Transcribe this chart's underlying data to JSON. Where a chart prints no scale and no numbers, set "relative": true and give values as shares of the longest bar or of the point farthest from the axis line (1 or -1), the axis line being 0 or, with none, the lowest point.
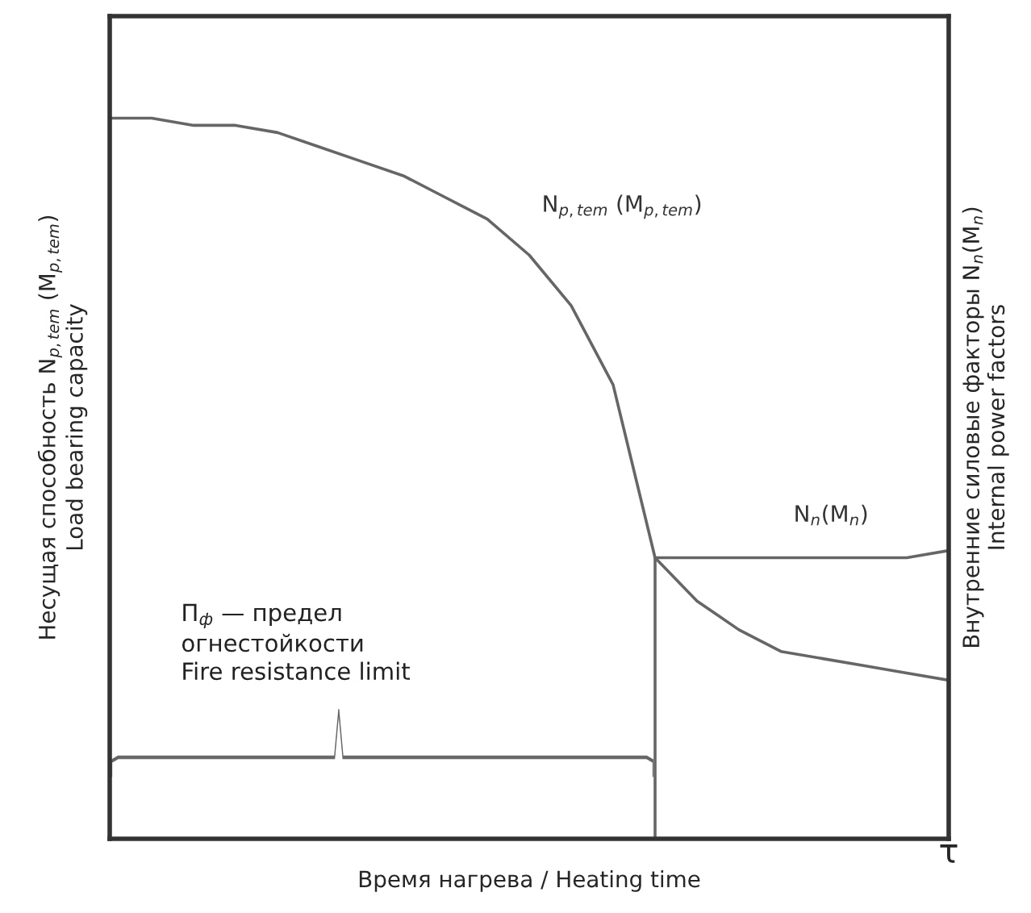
{
  "chart_data": {
    "type": "line",
    "relative": true,
    "xlabel": "Время нагрева / Heating time",
    "ylabel": "Несущая способность N$_{p,tem}$ (M$_{p,tem}$)\nLoad bearing capacity",
    "y2label": "Внутренние силовые факторы N$_{n}$(M$_{n}$)\nInternal power factors",
    "categories": [
      null,
      null,
      null,
      null,
      null,
      null,
      null,
      null,
      null,
      null,
      null,
      null,
      null,
      null,
      null,
      null,
      null,
      null,
      null,
      null,
      null
    ],
    "series": [
      {
        "name": "N$_{p,tem}$ (M$_{p,tem}$)",
        "color": "#666666",
        "values": [
          1.0,
          1.0,
          0.99,
          0.99,
          0.98,
          0.96,
          0.94,
          0.92,
          0.89,
          0.86,
          0.81,
          0.74,
          0.63,
          0.39,
          0.33,
          0.29,
          0.26,
          0.25,
          0.24,
          0.23,
          0.22
        ]
      },
      {
        "name": "N$_{n}$(M$_{n}$)",
        "color": "#666666",
        "values": [
          null,
          null,
          null,
          null,
          null,
          null,
          null,
          null,
          null,
          null,
          null,
          null,
          null,
          0.39,
          0.39,
          0.39,
          0.39,
          0.39,
          0.39,
          0.39,
          0.4
        ]
      }
    ],
    "annotations": [
      "П$_{ф}$ — предел\nогнестойкости\nFire resistance limit",
      "τ"
    ],
    "legend": false,
    "grid": false,
    "marker": "none",
    "line_style": "solid",
    "tick_labels": false
  }
}
